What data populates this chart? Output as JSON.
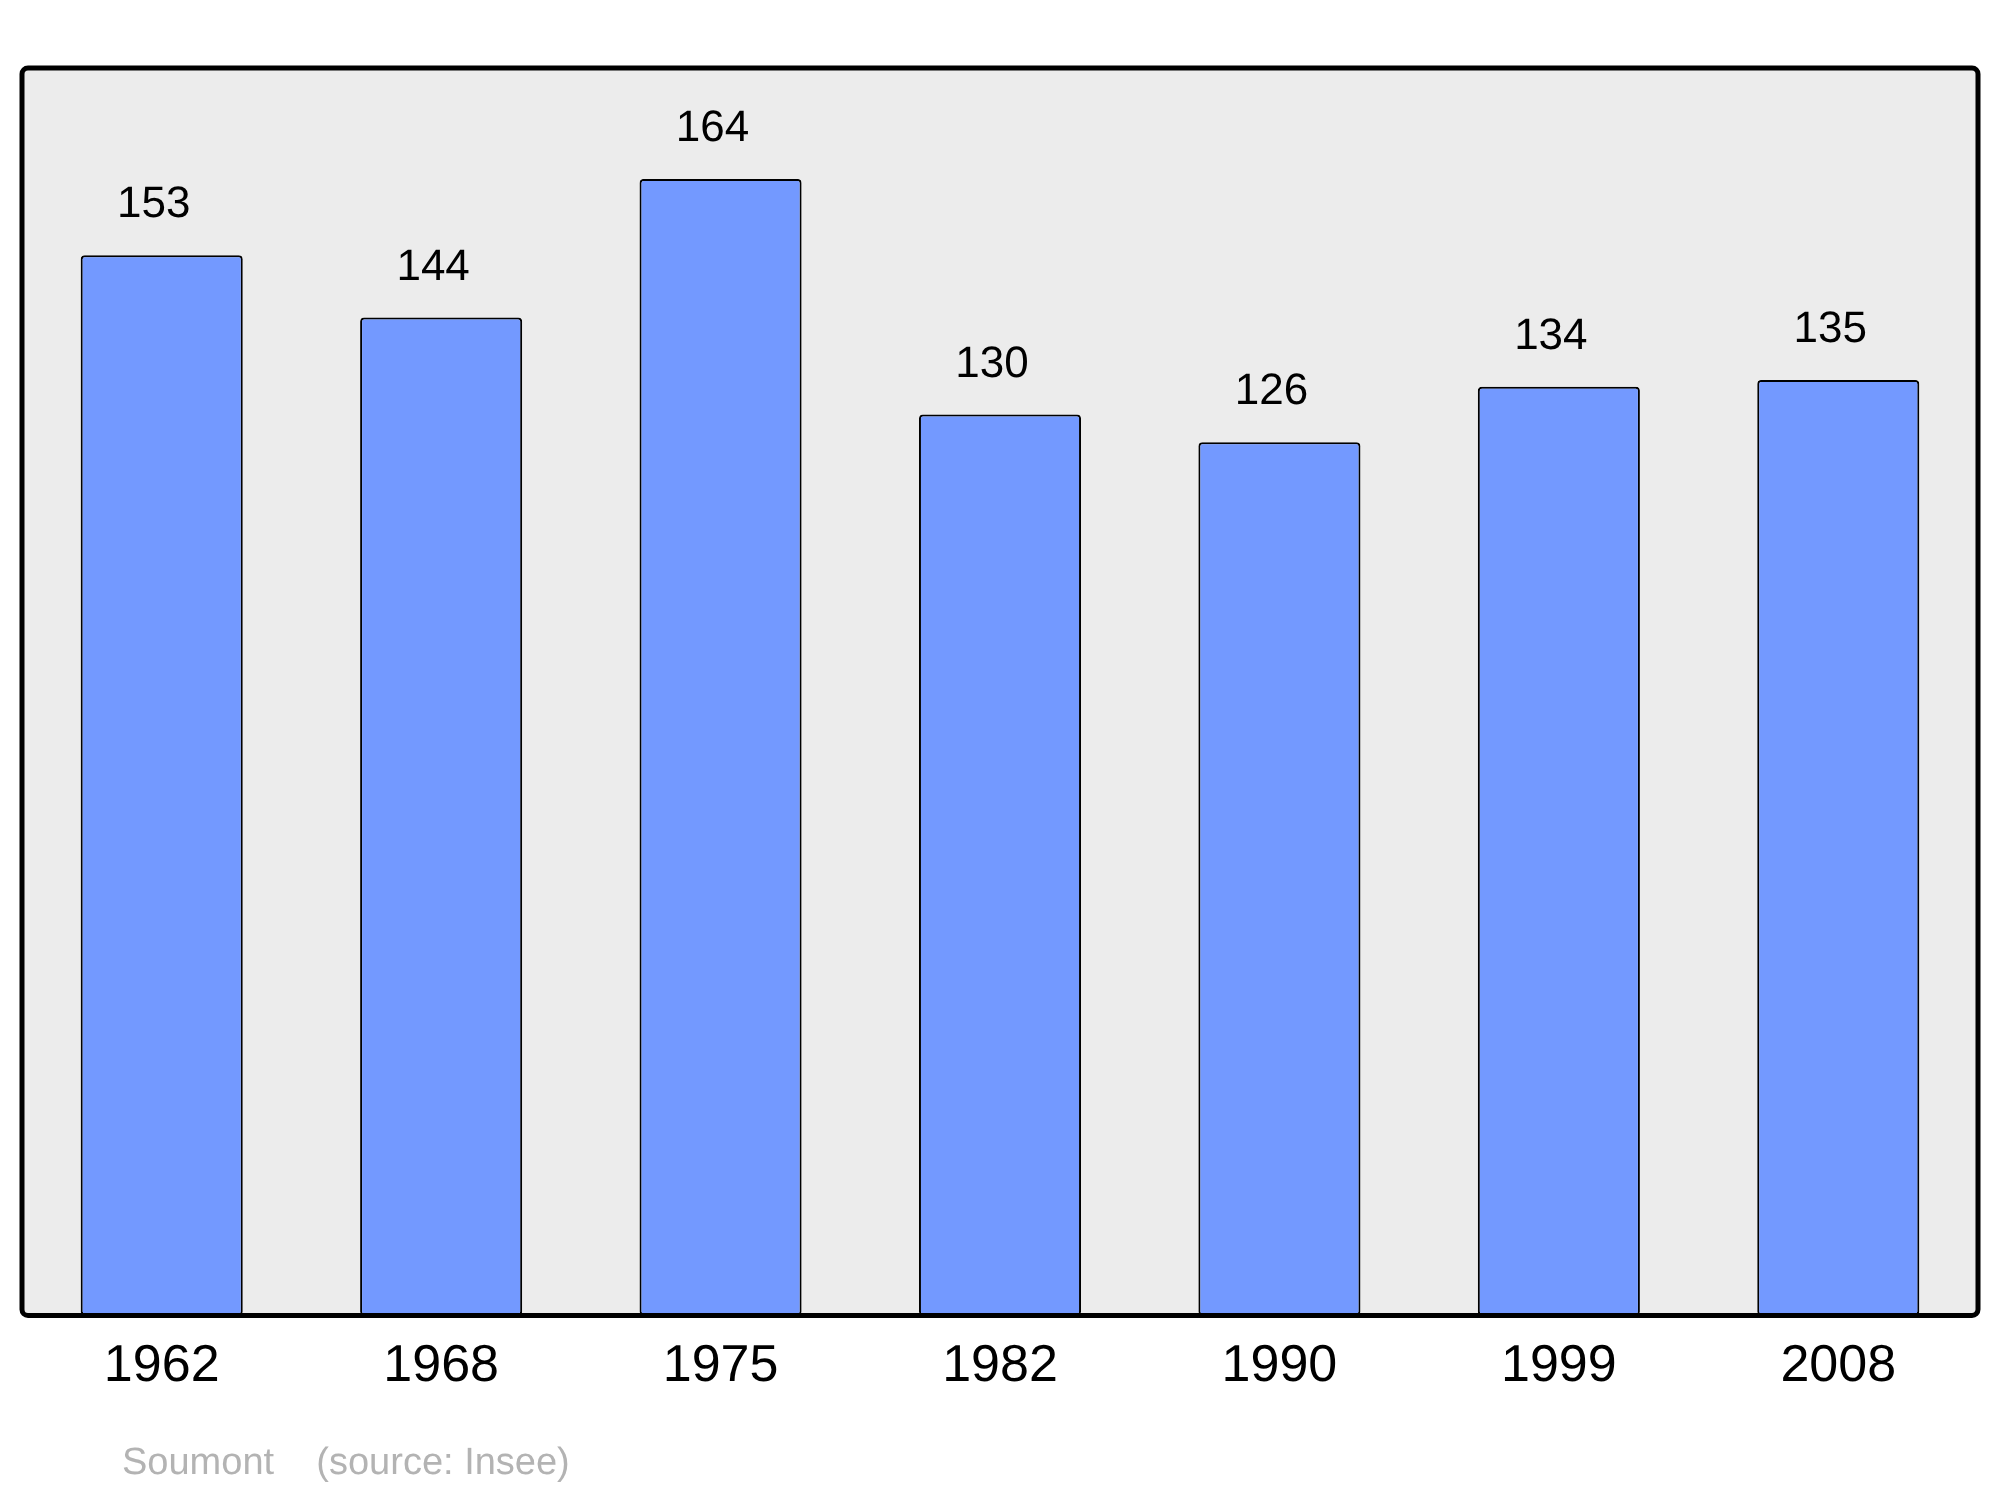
{
  "chart_data": {
    "type": "bar",
    "categories": [
      "1962",
      "1968",
      "1975",
      "1982",
      "1990",
      "1999",
      "2008"
    ],
    "values": [
      153,
      144,
      164,
      130,
      126,
      134,
      135
    ],
    "color": "#7399ff",
    "data_labels": true,
    "grid": false,
    "legend": false,
    "annotations": [
      "Soumont    (source: Insee)"
    ]
  }
}
